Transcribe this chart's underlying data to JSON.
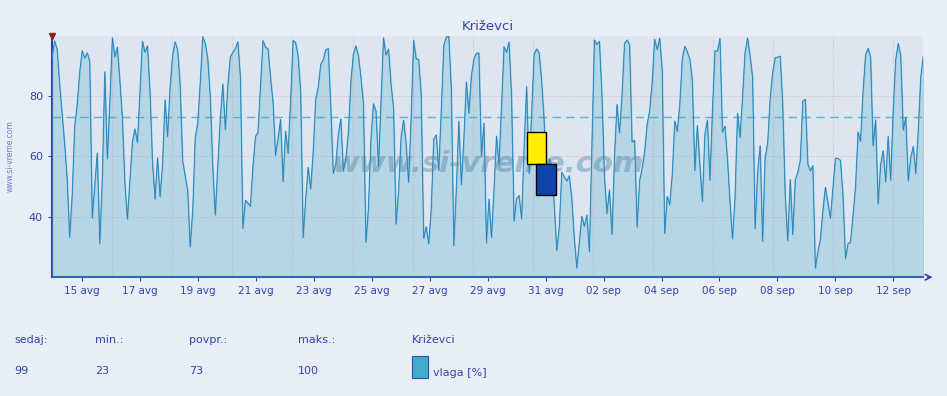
{
  "title": "Križevci",
  "bg_color": "#e8eef5",
  "plot_bg_color": "#dde5f0",
  "line_color": "#44aacc",
  "line_color_dark": "#2255aa",
  "grid_color_red": "#e8aaaa",
  "grid_color_blue": "#88bbdd",
  "axis_color": "#3344aa",
  "text_color": "#3344aa",
  "ymin": 20,
  "ymax": 100,
  "yticks": [
    40,
    60,
    80
  ],
  "avg_line": 73,
  "footer_labels": [
    "sedaj:",
    "min.:",
    "povpr.:",
    "maks.:",
    "Križevci"
  ],
  "footer_values": [
    "99",
    "23",
    "73",
    "100"
  ],
  "legend_label": "vlaga [%]",
  "legend_color": "#44aacc",
  "x_tick_labels": [
    "15 avg",
    "17 avg",
    "19 avg",
    "21 avg",
    "23 avg",
    "25 avg",
    "27 avg",
    "29 avg",
    "31 avg",
    "02 sep",
    "04 sep",
    "06 sep",
    "08 sep",
    "10 sep",
    "12 sep"
  ],
  "num_days": 29,
  "samples_per_day": 12
}
